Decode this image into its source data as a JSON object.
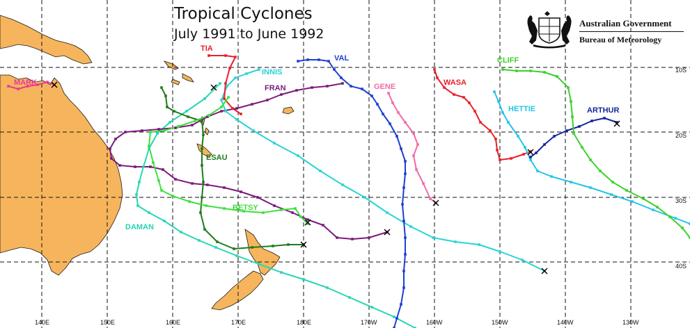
{
  "title": "Tropical Cyclones",
  "subtitle": "July 1991 to June 1992",
  "agency": {
    "government": "Australian Government",
    "bureau": "Bureau of Meteorology"
  },
  "longitude_labels": [
    "140E",
    "150E",
    "160E",
    "170E",
    "180E",
    "170W",
    "160W",
    "150W",
    "140W",
    "130W"
  ],
  "latitude_labels": [
    "10S",
    "20S",
    "30S",
    "40S"
  ],
  "cyclones": [
    {
      "name": "TIA",
      "color": "#e8202a"
    },
    {
      "name": "MARK",
      "color": "#e8399c"
    },
    {
      "name": "INNIS",
      "color": "#2ad4d4"
    },
    {
      "name": "FRAN",
      "color": "#7b1a7b"
    },
    {
      "name": "VAL",
      "color": "#1f3fd2"
    },
    {
      "name": "GENE",
      "color": "#f06aa8"
    },
    {
      "name": "WASA",
      "color": "#e8202a"
    },
    {
      "name": "CLIFF",
      "color": "#3bd12a"
    },
    {
      "name": "HETTIE",
      "color": "#23c4e8"
    },
    {
      "name": "ARTHUR",
      "color": "#12279a"
    },
    {
      "name": "ESAU",
      "color": "#1f7a1f"
    },
    {
      "name": "BETSY",
      "color": "#3ee03e"
    },
    {
      "name": "DAMAN",
      "color": "#27d6b4"
    }
  ]
}
